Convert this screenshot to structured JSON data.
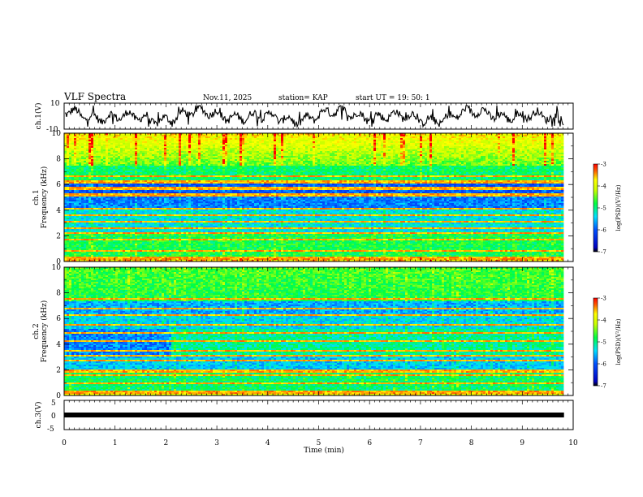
{
  "header": {
    "title": "VLF Spectra",
    "date": "Nov.11, 2025",
    "station": "station= KAP",
    "start_ut": "start  UT =   19: 50: 1"
  },
  "chart_data": {
    "type": "heatmap",
    "title": "VLF Spectra",
    "xlabel": "Time  (min)",
    "xlim": [
      0,
      10
    ],
    "xticks": [
      "0",
      "1",
      "2",
      "3",
      "4",
      "5",
      "6",
      "7",
      "8",
      "9",
      "10"
    ],
    "panels": {
      "ch1_wave": {
        "ylabel": "ch.1(V)",
        "ylim": [
          -10,
          10
        ],
        "yticks": [
          "10",
          "-10"
        ],
        "description_type": "line"
      },
      "ch1_spec": {
        "ylabel": "ch.1\nFrequency  (kHz)",
        "ylabel_line1": "ch.1",
        "ylabel_line2": "Frequency  (kHz)",
        "ylim": [
          0,
          10
        ],
        "yticks": [
          "0",
          "2",
          "4",
          "6",
          "8",
          "10"
        ],
        "colorbar_label": "log(PSD)(V²/Hz)",
        "colorbar_ticks": [
          "-3",
          "-4",
          "-5",
          "-6",
          "-7"
        ],
        "zlim": [
          -7,
          -3
        ]
      },
      "ch2_spec": {
        "ylabel_line1": "ch.2",
        "ylabel_line2": "Frequency  (kHz)",
        "ylim": [
          0,
          10
        ],
        "yticks": [
          "0",
          "2",
          "4",
          "6",
          "8",
          "10"
        ],
        "colorbar_label": "log(PSD)(V²/Hz)",
        "colorbar_ticks": [
          "-3",
          "-4",
          "-5",
          "-6",
          "-7"
        ],
        "zlim": [
          -7,
          -3
        ]
      },
      "ch3": {
        "ylabel": "ch.3(V)",
        "ylim": [
          -5,
          5
        ],
        "yticks": [
          "5",
          "0",
          "-5"
        ],
        "signal_value": 0,
        "signal_end_min": 9.82
      }
    },
    "data_end_min": 9.82
  }
}
